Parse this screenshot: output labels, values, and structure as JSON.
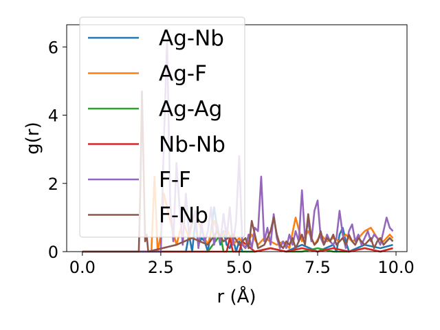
{
  "chart_data": {
    "type": "line",
    "xlabel": "r (Å)",
    "ylabel": "g(r)",
    "xlim": [
      -0.5,
      10.35
    ],
    "ylim": [
      0,
      6.65
    ],
    "xticks": [
      0.0,
      2.5,
      5.0,
      7.5,
      10.0
    ],
    "xtick_labels": [
      "0.0",
      "2.5",
      "5.0",
      "7.5",
      "10.0"
    ],
    "yticks": [
      0,
      2,
      4,
      6
    ],
    "ytick_labels": [
      "0",
      "2",
      "4",
      "6"
    ],
    "grid": false,
    "legend_position": "upper-left",
    "series": [
      {
        "name": "Ag-Nb",
        "color": "#1f77b4",
        "x": [
          0,
          3.3,
          3.4,
          3.5,
          3.6,
          3.7,
          3.8,
          3.9,
          4.0,
          4.1,
          4.2,
          4.3,
          4.4,
          4.5,
          4.6,
          4.7,
          4.8,
          4.9,
          5.0,
          5.1,
          5.2,
          5.5,
          6.0,
          6.5,
          7.0,
          7.5,
          8.0,
          8.1,
          8.2,
          8.3,
          8.4,
          8.5,
          9.0,
          9.5,
          9.9
        ],
        "y": [
          0,
          0,
          0.5,
          0,
          0.9,
          0.2,
          0.4,
          0.3,
          0,
          0.6,
          1.3,
          0.7,
          0.2,
          0.6,
          0.2,
          0.1,
          0.4,
          0,
          0.3,
          0,
          0,
          0,
          0.1,
          0,
          0.2,
          0,
          0.2,
          0,
          0.5,
          0.7,
          0.3,
          0,
          0.2,
          0.1,
          0.2
        ]
      },
      {
        "name": "Ag-F",
        "color": "#ff7f0e",
        "x": [
          0,
          2.2,
          2.3,
          2.4,
          2.5,
          2.6,
          2.8,
          3.0,
          3.2,
          3.4,
          3.6,
          3.8,
          4.0,
          4.2,
          4.4,
          4.6,
          4.8,
          5.0,
          5.2,
          5.4,
          5.6,
          5.8,
          6.0,
          6.2,
          6.4,
          6.6,
          6.8,
          7.0,
          7.2,
          7.4,
          7.6,
          7.8,
          8.0,
          8.2,
          8.4,
          8.6,
          8.8,
          9.0,
          9.2,
          9.4,
          9.6,
          9.8,
          9.9
        ],
        "y": [
          0,
          0,
          2.2,
          0,
          0.5,
          1.7,
          0.9,
          0.2,
          0.9,
          0.4,
          1.2,
          0.6,
          0.2,
          0.9,
          0.3,
          0.7,
          0.2,
          0.4,
          0.1,
          0.5,
          0.2,
          0.4,
          0.3,
          0.2,
          0.3,
          0.1,
          1.0,
          0.3,
          0.6,
          0.2,
          0.5,
          0.3,
          0.4,
          0.3,
          0.5,
          0.3,
          0.4,
          0.6,
          0.7,
          0.4,
          0.3,
          0.5,
          0.4
        ]
      },
      {
        "name": "Ag-Ag",
        "color": "#2ca02c",
        "x": [
          0,
          3.0,
          3.5,
          4.0,
          4.4,
          4.5,
          4.6,
          5.0,
          5.5,
          6.0,
          6.5,
          7.0,
          7.5,
          8.0,
          8.5,
          9.0,
          9.5,
          9.9
        ],
        "y": [
          0,
          0,
          0,
          0,
          0.5,
          0,
          0,
          0,
          0,
          0.1,
          0,
          0,
          0.1,
          0,
          0,
          0.1,
          0,
          0.1
        ]
      },
      {
        "name": "Nb-Nb",
        "color": "#d62728",
        "x": [
          0,
          4.0,
          4.6,
          4.7,
          4.8,
          5.0,
          5.1,
          5.5,
          6.0,
          6.5,
          7.0,
          7.5,
          8.0,
          8.5,
          9.0,
          9.5,
          9.9
        ],
        "y": [
          0,
          0,
          0,
          0.4,
          0,
          0,
          0.3,
          0,
          0.1,
          0,
          0.1,
          0,
          0.1,
          0,
          0.1,
          0,
          0.1
        ]
      },
      {
        "name": "F-F",
        "color": "#9467bd",
        "x": [
          0,
          2.5,
          2.6,
          2.7,
          2.8,
          2.9,
          3.0,
          3.1,
          3.2,
          3.3,
          3.4,
          3.5,
          3.6,
          3.7,
          3.8,
          3.9,
          4.0,
          4.1,
          4.2,
          4.3,
          4.4,
          4.5,
          4.6,
          4.7,
          4.8,
          4.9,
          5.0,
          5.1,
          5.2,
          5.3,
          5.4,
          5.5,
          5.6,
          5.7,
          5.8,
          5.9,
          6.0,
          6.1,
          6.2,
          6.3,
          6.4,
          6.5,
          6.6,
          6.7,
          6.8,
          6.9,
          7.0,
          7.1,
          7.2,
          7.3,
          7.4,
          7.5,
          7.6,
          7.7,
          7.8,
          7.9,
          8.0,
          8.1,
          8.2,
          8.3,
          8.4,
          8.5,
          8.6,
          8.7,
          8.8,
          8.9,
          9.0,
          9.1,
          9.2,
          9.3,
          9.4,
          9.5,
          9.6,
          9.7,
          9.8,
          9.9
        ],
        "y": [
          0,
          0,
          3.2,
          6.2,
          1.4,
          0.3,
          2.6,
          1.3,
          0.2,
          1.7,
          0.5,
          0.9,
          1.2,
          0.1,
          0.8,
          0.3,
          0.6,
          1.3,
          0.2,
          0.8,
          0.3,
          1.1,
          0.4,
          1.3,
          0.2,
          0.9,
          2.8,
          0.2,
          0.1,
          0.5,
          0.1,
          0.7,
          0.6,
          2.2,
          0.3,
          0.7,
          0.2,
          1.1,
          0.4,
          0.1,
          0.3,
          0.1,
          0.5,
          0.2,
          0.6,
          0.3,
          1.8,
          0.4,
          0.9,
          0.3,
          1.2,
          1.5,
          0.4,
          0.2,
          0.5,
          0.3,
          0.2,
          0.4,
          1.2,
          0.5,
          0.1,
          0.6,
          0.8,
          0.3,
          0.5,
          0.2,
          0.4,
          0.6,
          0.3,
          0.5,
          0.4,
          0.2,
          0.6,
          1.0,
          0.7,
          0.6
        ]
      },
      {
        "name": "F-Nb",
        "color": "#8c564b",
        "x": [
          0,
          1.8,
          1.85,
          1.9,
          1.95,
          2.0,
          2.05,
          2.1,
          3.0,
          3.5,
          4.0,
          4.3,
          4.5,
          4.8,
          5.0,
          5.2,
          5.3,
          5.4,
          5.5,
          5.6,
          5.8,
          5.9,
          6.0,
          6.1,
          6.2,
          6.3,
          6.4,
          6.5,
          6.6,
          6.7,
          6.8,
          6.9,
          7.0,
          7.1,
          7.2,
          7.3,
          7.4,
          7.5,
          7.6,
          7.7,
          7.8,
          7.9,
          8.0,
          8.1,
          8.2,
          8.3,
          8.4,
          8.5,
          8.6,
          8.7,
          8.8,
          8.9,
          9.0,
          9.1,
          9.2,
          9.3,
          9.4,
          9.5,
          9.6,
          9.7,
          9.8,
          9.9
        ],
        "y": [
          0,
          0,
          1.9,
          4.7,
          2.5,
          0.3,
          0.5,
          0,
          0.2,
          0.4,
          0.2,
          0.6,
          0.3,
          0.5,
          0.2,
          0.4,
          0.1,
          0.9,
          0.5,
          0.1,
          0.2,
          0.4,
          0.6,
          1.0,
          0.5,
          0.2,
          0.1,
          0.3,
          0.2,
          0.4,
          0.1,
          0.3,
          0.5,
          0.2,
          1.1,
          0.4,
          0.2,
          0.3,
          0.6,
          0.2,
          0.4,
          0.3,
          0.5,
          0.2,
          0.3,
          0.4,
          0.2,
          0.5,
          0.3,
          0.2,
          0.4,
          0.3,
          0.2,
          0.3,
          0.4,
          0.1,
          0.3,
          0.4,
          0.2,
          0.3,
          0.4,
          0.3
        ]
      }
    ]
  }
}
